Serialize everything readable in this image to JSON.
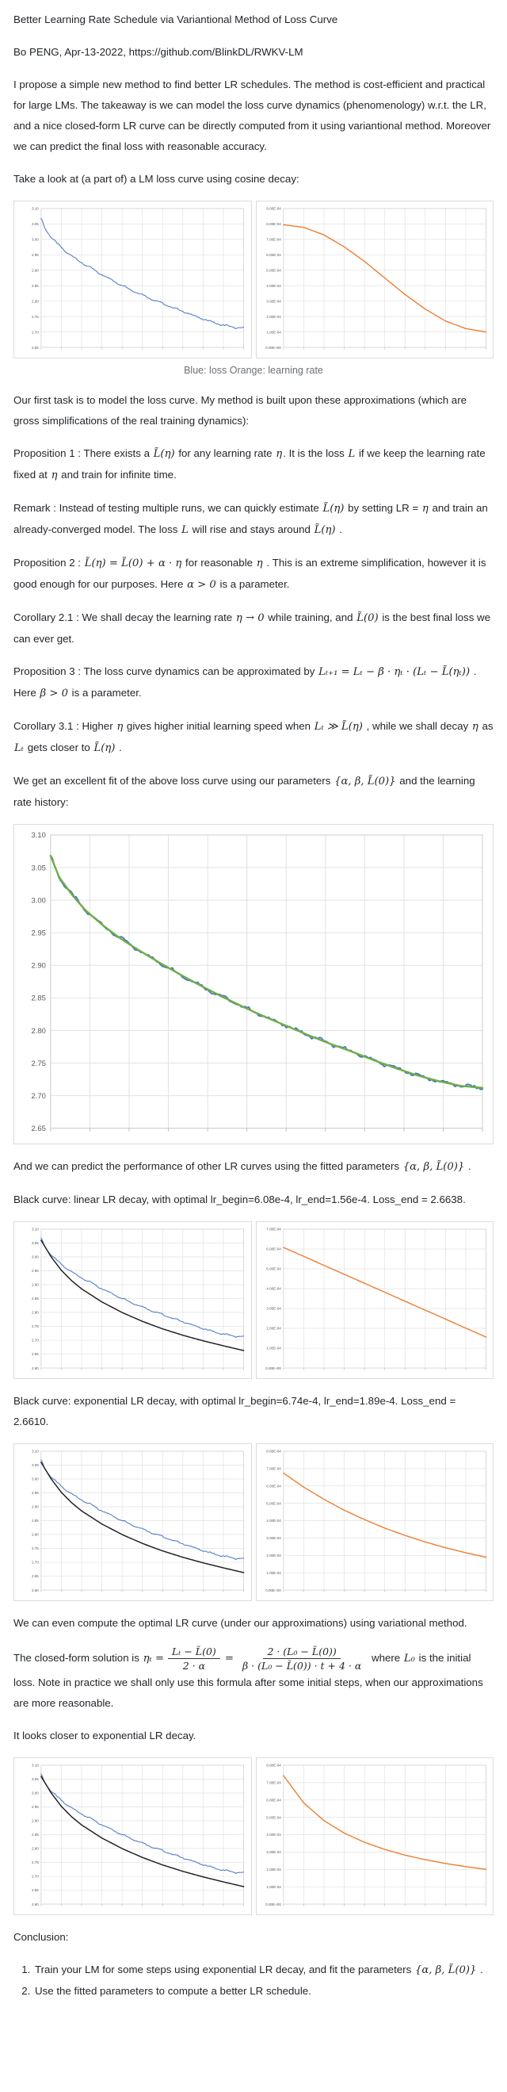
{
  "document": {
    "title": "Better Learning Rate Schedule via Variantional Method of Loss Curve",
    "byline": "Bo PENG, Apr-13-2022, https://github.com/BlinkDL/RWKV-LM",
    "intro": "I propose a simple new method to find better LR schedules. The method is cost-efficient and practical for large LMs. The takeaway is we can model the loss curve dynamics (phenomenology) w.r.t. the LR, and a nice closed-form LR curve can be directly computed from it using variantional method. Moreover we can predict the final loss with reasonable accuracy.",
    "take_look": "Take a look at (a part of) a LM loss curve using cosine decay:",
    "caption": "Blue: loss Orange: learning rate",
    "first_task": "Our first task is to model the loss curve. My method is built upon these approximations (which are gross simplifications of the real training dynamics):",
    "prop1": [
      {
        "m": 0,
        "v": "Proposition 1 : There exists a "
      },
      {
        "m": 1,
        "v": "L̃(η)"
      },
      {
        "m": 0,
        "v": " for any learning rate "
      },
      {
        "m": 1,
        "v": "η"
      },
      {
        "m": 0,
        "v": ". It is the loss "
      },
      {
        "m": 1,
        "v": "L"
      },
      {
        "m": 0,
        "v": " if we keep the learning rate fixed at "
      },
      {
        "m": 1,
        "v": "η"
      },
      {
        "m": 0,
        "v": " and train for infinite time."
      }
    ],
    "remark": [
      {
        "m": 0,
        "v": "Remark : Instead of testing multiple runs, we can quickly estimate "
      },
      {
        "m": 1,
        "v": "L̃(η)"
      },
      {
        "m": 0,
        "v": " by setting LR = "
      },
      {
        "m": 1,
        "v": "η"
      },
      {
        "m": 0,
        "v": " and train an already-converged model. The loss "
      },
      {
        "m": 1,
        "v": "L"
      },
      {
        "m": 0,
        "v": " will rise and stays around "
      },
      {
        "m": 1,
        "v": "L̃(η)"
      },
      {
        "m": 0,
        "v": " ."
      }
    ],
    "prop2": [
      {
        "m": 0,
        "v": "Proposition 2 : "
      },
      {
        "m": 1,
        "v": "L̃(η) = L̃(0) + α · η"
      },
      {
        "m": 0,
        "v": " for reasonable "
      },
      {
        "m": 1,
        "v": "η"
      },
      {
        "m": 0,
        "v": " . This is an extreme simplification, however it is good enough for our purposes. Here "
      },
      {
        "m": 1,
        "v": "α > 0"
      },
      {
        "m": 0,
        "v": " is a parameter."
      }
    ],
    "cor21": [
      {
        "m": 0,
        "v": "Corollary 2.1 : We shall decay the learning rate "
      },
      {
        "m": 1,
        "v": "η → 0"
      },
      {
        "m": 0,
        "v": " while training, and "
      },
      {
        "m": 1,
        "v": "L̃(0)"
      },
      {
        "m": 0,
        "v": " is the best final loss we can ever get."
      }
    ],
    "prop3": [
      {
        "m": 0,
        "v": "Proposition 3 : The loss curve dynamics can be approximated by "
      },
      {
        "m": 1,
        "v": "Lₜ₊₁ = Lₜ − β · ηₜ · (Lₜ − L̃(ηₜ))"
      },
      {
        "m": 0,
        "v": " . Here "
      },
      {
        "m": 1,
        "v": "β > 0"
      },
      {
        "m": 0,
        "v": " is a parameter."
      }
    ],
    "cor31": [
      {
        "m": 0,
        "v": "Corollary 3.1 : Higher "
      },
      {
        "m": 1,
        "v": "η"
      },
      {
        "m": 0,
        "v": " gives higher initial learning speed when "
      },
      {
        "m": 1,
        "v": "Lₜ ≫ L̃(η)"
      },
      {
        "m": 0,
        "v": " , while we shall decay "
      },
      {
        "m": 1,
        "v": "η"
      },
      {
        "m": 0,
        "v": " as "
      },
      {
        "m": 1,
        "v": "Lₜ"
      },
      {
        "m": 0,
        "v": " gets closer to "
      },
      {
        "m": 1,
        "v": "L̃(η)"
      },
      {
        "m": 0,
        "v": " ."
      }
    ],
    "we_get": [
      {
        "m": 0,
        "v": "We get an excellent fit of the above loss curve using our parameters "
      },
      {
        "m": 1,
        "v": "{α, β, L̃(0)}"
      },
      {
        "m": 0,
        "v": " and the learning rate history:"
      }
    ],
    "and_we": [
      {
        "m": 0,
        "v": "And we can predict the performance of other LR curves using the fitted parameters "
      },
      {
        "m": 1,
        "v": "{α, β, L̃(0)}"
      },
      {
        "m": 0,
        "v": " ."
      }
    ],
    "black_linear": "Black curve: linear LR decay, with optimal lr_begin=6.08e-4, lr_end=1.56e-4. Loss_end = 2.6638.",
    "black_exp": "Black curve: exponential LR decay, with optimal lr_begin=6.74e-4, lr_end=1.89e-4. Loss_end = 2.6610.",
    "we_can": "We can even compute the optimal LR curve (under our approximations) using variational method.",
    "closed_lead": [
      {
        "m": 0,
        "v": "The closed-form solution is "
      },
      {
        "m": 1,
        "v": "ηₜ ="
      }
    ],
    "frac1": {
      "num": "Lₜ − L̃(0)",
      "den": "2 · α"
    },
    "eq": "=",
    "frac2": {
      "num": "2 · (L₀ − L̃(0))",
      "den": "β · (L₀ − L̃(0)) · t + 4 · α"
    },
    "closed_tail": [
      {
        "m": 0,
        "v": " where "
      },
      {
        "m": 1,
        "v": "L₀"
      },
      {
        "m": 0,
        "v": " is the initial loss. Note in practice we shall only use this formula after some initial steps, when our approximations are more reasonable."
      }
    ],
    "it_looks": "It looks closer to exponential LR decay.",
    "conclusion": "Conclusion:",
    "items": [
      [
        {
          "m": 0,
          "v": "Train your LM for some steps using exponential LR decay, and fit the parameters "
        },
        {
          "m": 1,
          "v": "{α, β, L̃(0)}"
        },
        {
          "m": 0,
          "v": " ."
        }
      ],
      [
        {
          "m": 0,
          "v": "Use the fitted parameters to compute a better LR schedule."
        }
      ]
    ]
  },
  "chart_data": {
    "type": "line",
    "grid": true,
    "colors": {
      "loss": "#4472c4",
      "lr": "#ed7d31",
      "fit": "#70ad47",
      "predicted": "#222222",
      "gridline": "#e2e2e2",
      "axis_text": "#595959",
      "plot_border": "#cfcfcf"
    },
    "curves": {
      "loss_cosine": [
        [
          0,
          3.068
        ],
        [
          0.02,
          3.035
        ],
        [
          0.05,
          3.008
        ],
        [
          0.08,
          2.985
        ],
        [
          0.12,
          2.962
        ],
        [
          0.16,
          2.942
        ],
        [
          0.2,
          2.925
        ],
        [
          0.25,
          2.905
        ],
        [
          0.3,
          2.886
        ],
        [
          0.35,
          2.868
        ],
        [
          0.4,
          2.851
        ],
        [
          0.45,
          2.835
        ],
        [
          0.5,
          2.82
        ],
        [
          0.55,
          2.806
        ],
        [
          0.6,
          2.792
        ],
        [
          0.65,
          2.779
        ],
        [
          0.7,
          2.767
        ],
        [
          0.75,
          2.754
        ],
        [
          0.8,
          2.742
        ],
        [
          0.85,
          2.731
        ],
        [
          0.9,
          2.722
        ],
        [
          0.95,
          2.715
        ],
        [
          1,
          2.712
        ]
      ],
      "loss_pred_optimal": [
        [
          0,
          3.06
        ],
        [
          0.05,
          3.0
        ],
        [
          0.1,
          2.952
        ],
        [
          0.15,
          2.915
        ],
        [
          0.2,
          2.885
        ],
        [
          0.3,
          2.838
        ],
        [
          0.4,
          2.8
        ],
        [
          0.5,
          2.768
        ],
        [
          0.6,
          2.741
        ],
        [
          0.7,
          2.718
        ],
        [
          0.8,
          2.698
        ],
        [
          0.9,
          2.68
        ],
        [
          1,
          2.663
        ]
      ],
      "lr_cosine": [
        [
          0,
          0.000795
        ],
        [
          0.1,
          0.000778
        ],
        [
          0.2,
          0.000729
        ],
        [
          0.3,
          0.000652
        ],
        [
          0.4,
          0.000557
        ],
        [
          0.5,
          0.00045
        ],
        [
          0.6,
          0.000343
        ],
        [
          0.7,
          0.000248
        ],
        [
          0.8,
          0.000171
        ],
        [
          0.9,
          0.000122
        ],
        [
          1,
          0.0001
        ]
      ],
      "lr_linear": [
        [
          0,
          0.000608
        ],
        [
          1,
          0.000156
        ]
      ],
      "lr_exponential": [
        [
          0,
          0.000674
        ],
        [
          0.1,
          0.000593
        ],
        [
          0.2,
          0.000523
        ],
        [
          0.3,
          0.00046
        ],
        [
          0.4,
          0.000406
        ],
        [
          0.5,
          0.000357
        ],
        [
          0.6,
          0.000315
        ],
        [
          0.7,
          0.000277
        ],
        [
          0.8,
          0.000244
        ],
        [
          0.9,
          0.000215
        ],
        [
          1,
          0.000189
        ]
      ],
      "lr_variational": [
        [
          0,
          0.00074
        ],
        [
          0.1,
          0.000583
        ],
        [
          0.2,
          0.000481
        ],
        [
          0.3,
          0.000409
        ],
        [
          0.4,
          0.000356
        ],
        [
          0.5,
          0.000315
        ],
        [
          0.6,
          0.000282
        ],
        [
          0.7,
          0.000256
        ],
        [
          0.8,
          0.000234
        ],
        [
          0.9,
          0.000216
        ],
        [
          1,
          0.0002
        ]
      ]
    },
    "charts": [
      {
        "name": "cosine-loss",
        "size": "small",
        "ylim": [
          2.65,
          3.1
        ],
        "xdiv": 10,
        "ytick_labels": [
          "3.10",
          "3.05",
          "3.00",
          "2.95",
          "2.90",
          "2.85",
          "2.80",
          "2.75",
          "2.70",
          "2.65"
        ],
        "series": [
          {
            "curve": "loss_cosine",
            "color": "#4472c4",
            "width": 1,
            "noise": 0.004
          }
        ]
      },
      {
        "name": "cosine-lr",
        "size": "small",
        "ylim": [
          0,
          0.0009
        ],
        "xdiv": 10,
        "ytick_labels": [
          "9.00E-04",
          "8.00E-04",
          "7.00E-04",
          "6.00E-04",
          "5.00E-04",
          "4.00E-04",
          "3.00E-04",
          "2.00E-04",
          "1.00E-04",
          "0.00E+00"
        ],
        "series": [
          {
            "curve": "lr_cosine",
            "color": "#ed7d31",
            "width": 1.4,
            "noise": 0
          }
        ]
      },
      {
        "name": "loss-fit",
        "size": "big",
        "ylim": [
          2.65,
          3.1
        ],
        "xdiv": 11,
        "ytick_labels": [
          "3.10",
          "3.05",
          "3.00",
          "2.95",
          "2.90",
          "2.85",
          "2.80",
          "2.75",
          "2.70",
          "2.65"
        ],
        "series": [
          {
            "curve": "loss_cosine",
            "color": "#4472c4",
            "width": 1.7,
            "noise": 0.004
          },
          {
            "curve": "loss_cosine",
            "color": "#70ad47",
            "width": 2.4,
            "noise": 0
          }
        ]
      },
      {
        "name": "linear-loss",
        "size": "small",
        "ylim": [
          2.6,
          3.1
        ],
        "xdiv": 10,
        "ytick_labels": [
          "3.10",
          "3.05",
          "3.00",
          "2.95",
          "2.90",
          "2.85",
          "2.80",
          "2.75",
          "2.70",
          "2.65",
          "2.60"
        ],
        "series": [
          {
            "curve": "loss_cosine",
            "color": "#4472c4",
            "width": 1,
            "noise": 0.004
          },
          {
            "curve": "loss_pred_optimal",
            "color": "#222222",
            "width": 1.5,
            "noise": 0
          }
        ]
      },
      {
        "name": "linear-lr",
        "size": "small",
        "ylim": [
          0,
          0.0007
        ],
        "xdiv": 10,
        "ytick_labels": [
          "7.00E-04",
          "6.00E-04",
          "5.00E-04",
          "4.00E-04",
          "3.00E-04",
          "2.00E-04",
          "1.00E-04",
          "0.00E+00"
        ],
        "series": [
          {
            "curve": "lr_linear",
            "color": "#ed7d31",
            "width": 1.4,
            "noise": 0
          }
        ]
      },
      {
        "name": "exp-loss",
        "size": "small",
        "ylim": [
          2.6,
          3.1
        ],
        "xdiv": 10,
        "ytick_labels": [
          "3.10",
          "3.05",
          "3.00",
          "2.95",
          "2.90",
          "2.85",
          "2.80",
          "2.75",
          "2.70",
          "2.65",
          "2.60"
        ],
        "series": [
          {
            "curve": "loss_cosine",
            "color": "#4472c4",
            "width": 1,
            "noise": 0.004
          },
          {
            "curve": "loss_pred_optimal",
            "color": "#222222",
            "width": 1.5,
            "noise": 0
          }
        ]
      },
      {
        "name": "exp-lr",
        "size": "small",
        "ylim": [
          0,
          0.0008
        ],
        "xdiv": 10,
        "ytick_labels": [
          "8.00E-04",
          "7.00E-04",
          "6.00E-04",
          "5.00E-04",
          "4.00E-04",
          "3.00E-04",
          "2.00E-04",
          "1.00E-04",
          "0.00E+00"
        ],
        "series": [
          {
            "curve": "lr_exponential",
            "color": "#ed7d31",
            "width": 1.4,
            "noise": 0
          }
        ]
      },
      {
        "name": "variational-loss",
        "size": "small",
        "ylim": [
          2.6,
          3.1
        ],
        "xdiv": 10,
        "ytick_labels": [
          "3.10",
          "3.05",
          "3.00",
          "2.95",
          "2.90",
          "2.85",
          "2.80",
          "2.75",
          "2.70",
          "2.65",
          "2.60"
        ],
        "series": [
          {
            "curve": "loss_cosine",
            "color": "#4472c4",
            "width": 1,
            "noise": 0.004
          },
          {
            "curve": "loss_pred_optimal",
            "color": "#222222",
            "width": 1.5,
            "noise": 0
          }
        ]
      },
      {
        "name": "variational-lr",
        "size": "small",
        "ylim": [
          0,
          0.0008
        ],
        "xdiv": 10,
        "ytick_labels": [
          "8.00E-04",
          "7.00E-04",
          "6.00E-04",
          "5.00E-04",
          "4.00E-04",
          "3.00E-04",
          "2.00E-04",
          "1.00E-04",
          "0.00E+00"
        ],
        "series": [
          {
            "curve": "lr_variational",
            "color": "#ed7d31",
            "width": 1.4,
            "noise": 0
          }
        ]
      }
    ]
  }
}
